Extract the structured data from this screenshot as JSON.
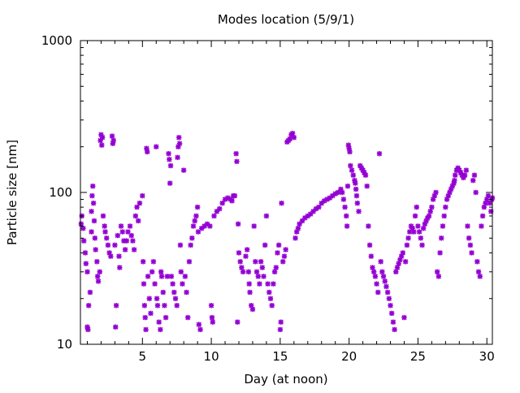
{
  "chart_data": {
    "type": "scatter",
    "title": "Modes location (5/9/1)",
    "xlabel": "Day (at noon)",
    "ylabel": "Particle size [nm]",
    "xlim": [
      0.5,
      30.4
    ],
    "ylim": [
      10,
      1000
    ],
    "y_scale": "log",
    "x_ticks": [
      5,
      10,
      15,
      20,
      25,
      30
    ],
    "x_tick_labels": [
      "5",
      "10",
      "15",
      "20",
      "25",
      "30"
    ],
    "y_ticks": [
      10,
      100,
      1000
    ],
    "y_tick_labels": [
      "10",
      "100",
      "1000"
    ],
    "grid": false,
    "legend": "none",
    "marker_color": "#9400D3",
    "marker": "asterisk",
    "series": [
      {
        "points": [
          [
            0.55,
            62
          ],
          [
            0.6,
            70
          ],
          [
            0.7,
            58
          ],
          [
            0.75,
            48
          ],
          [
            0.85,
            40
          ],
          [
            0.9,
            34
          ],
          [
            1.0,
            30
          ],
          [
            1.0,
            13
          ],
          [
            1.05,
            12.5
          ],
          [
            1.1,
            18
          ],
          [
            1.2,
            22
          ],
          [
            1.3,
            55
          ],
          [
            1.3,
            75
          ],
          [
            1.35,
            95
          ],
          [
            1.4,
            110
          ],
          [
            1.45,
            85
          ],
          [
            1.5,
            65
          ],
          [
            1.55,
            50
          ],
          [
            1.6,
            42
          ],
          [
            1.7,
            35
          ],
          [
            1.75,
            28
          ],
          [
            1.8,
            26
          ],
          [
            1.9,
            30
          ],
          [
            1.95,
            220
          ],
          [
            2.0,
            240
          ],
          [
            2.05,
            205
          ],
          [
            2.1,
            230
          ],
          [
            2.15,
            70
          ],
          [
            2.25,
            60
          ],
          [
            2.3,
            55
          ],
          [
            2.4,
            50
          ],
          [
            2.5,
            45
          ],
          [
            2.6,
            40
          ],
          [
            2.7,
            38
          ],
          [
            2.8,
            235
          ],
          [
            2.85,
            210
          ],
          [
            2.9,
            220
          ],
          [
            3.0,
            45
          ],
          [
            3.05,
            13
          ],
          [
            3.1,
            18
          ],
          [
            3.2,
            52
          ],
          [
            3.3,
            38
          ],
          [
            3.35,
            32
          ],
          [
            3.45,
            60
          ],
          [
            3.55,
            55
          ],
          [
            3.65,
            48
          ],
          [
            3.75,
            42
          ],
          [
            3.85,
            48
          ],
          [
            3.95,
            55
          ],
          [
            4.1,
            60
          ],
          [
            4.2,
            52
          ],
          [
            4.3,
            48
          ],
          [
            4.4,
            42
          ],
          [
            4.5,
            70
          ],
          [
            4.6,
            80
          ],
          [
            4.7,
            65
          ],
          [
            4.8,
            85
          ],
          [
            5.0,
            95
          ],
          [
            5.05,
            35
          ],
          [
            5.1,
            25
          ],
          [
            5.15,
            18
          ],
          [
            5.2,
            15
          ],
          [
            5.25,
            12.5
          ],
          [
            5.3,
            195
          ],
          [
            5.35,
            185
          ],
          [
            5.4,
            28
          ],
          [
            5.5,
            20
          ],
          [
            5.6,
            16
          ],
          [
            5.7,
            30
          ],
          [
            5.8,
            35
          ],
          [
            5.9,
            25
          ],
          [
            6.0,
            200
          ],
          [
            6.05,
            20
          ],
          [
            6.1,
            18
          ],
          [
            6.2,
            14
          ],
          [
            6.3,
            12.5
          ],
          [
            6.35,
            30
          ],
          [
            6.4,
            28
          ],
          [
            6.5,
            22
          ],
          [
            6.6,
            18
          ],
          [
            6.7,
            15
          ],
          [
            6.8,
            28
          ],
          [
            6.9,
            180
          ],
          [
            6.95,
            165
          ],
          [
            7.0,
            115
          ],
          [
            7.05,
            150
          ],
          [
            7.1,
            28
          ],
          [
            7.2,
            25
          ],
          [
            7.3,
            22
          ],
          [
            7.4,
            20
          ],
          [
            7.5,
            18
          ],
          [
            7.55,
            170
          ],
          [
            7.6,
            200
          ],
          [
            7.65,
            230
          ],
          [
            7.7,
            210
          ],
          [
            7.75,
            45
          ],
          [
            7.8,
            30
          ],
          [
            7.9,
            25
          ],
          [
            8.0,
            140
          ],
          [
            8.1,
            28
          ],
          [
            8.2,
            22
          ],
          [
            8.3,
            15
          ],
          [
            8.4,
            35
          ],
          [
            8.5,
            45
          ],
          [
            8.6,
            50
          ],
          [
            8.7,
            60
          ],
          [
            8.8,
            65
          ],
          [
            8.9,
            70
          ],
          [
            9.0,
            80
          ],
          [
            9.05,
            55
          ],
          [
            9.1,
            13.5
          ],
          [
            9.2,
            12.5
          ],
          [
            9.3,
            58
          ],
          [
            9.5,
            60
          ],
          [
            9.7,
            62
          ],
          [
            9.9,
            60
          ],
          [
            10.0,
            18
          ],
          [
            10.05,
            15
          ],
          [
            10.1,
            14
          ],
          [
            10.2,
            70
          ],
          [
            10.4,
            75
          ],
          [
            10.6,
            78
          ],
          [
            10.8,
            85
          ],
          [
            11.0,
            90
          ],
          [
            11.2,
            92
          ],
          [
            11.4,
            90
          ],
          [
            11.5,
            88
          ],
          [
            11.6,
            95
          ],
          [
            11.7,
            95
          ],
          [
            11.8,
            180
          ],
          [
            11.85,
            160
          ],
          [
            11.9,
            14
          ],
          [
            11.95,
            62
          ],
          [
            12.0,
            40
          ],
          [
            12.1,
            35
          ],
          [
            12.2,
            32
          ],
          [
            12.3,
            30
          ],
          [
            12.5,
            38
          ],
          [
            12.6,
            42
          ],
          [
            12.7,
            30
          ],
          [
            12.75,
            25
          ],
          [
            12.8,
            22
          ],
          [
            12.9,
            18
          ],
          [
            13.0,
            17
          ],
          [
            13.1,
            60
          ],
          [
            13.2,
            35
          ],
          [
            13.3,
            30
          ],
          [
            13.4,
            28
          ],
          [
            13.5,
            25
          ],
          [
            13.6,
            35
          ],
          [
            13.7,
            32
          ],
          [
            13.8,
            28
          ],
          [
            13.9,
            45
          ],
          [
            14.0,
            70
          ],
          [
            14.1,
            25
          ],
          [
            14.2,
            22
          ],
          [
            14.3,
            20
          ],
          [
            14.4,
            18
          ],
          [
            14.5,
            25
          ],
          [
            14.6,
            30
          ],
          [
            14.7,
            32
          ],
          [
            14.8,
            40
          ],
          [
            14.9,
            45
          ],
          [
            15.0,
            12.5
          ],
          [
            15.05,
            14
          ],
          [
            15.1,
            85
          ],
          [
            15.2,
            35
          ],
          [
            15.3,
            38
          ],
          [
            15.4,
            42
          ],
          [
            15.5,
            215
          ],
          [
            15.6,
            220
          ],
          [
            15.7,
            225
          ],
          [
            15.8,
            240
          ],
          [
            15.9,
            245
          ],
          [
            16.0,
            230
          ],
          [
            16.1,
            50
          ],
          [
            16.2,
            55
          ],
          [
            16.3,
            58
          ],
          [
            16.4,
            62
          ],
          [
            16.6,
            65
          ],
          [
            16.8,
            68
          ],
          [
            17.0,
            70
          ],
          [
            17.2,
            72
          ],
          [
            17.4,
            75
          ],
          [
            17.6,
            78
          ],
          [
            17.8,
            80
          ],
          [
            18.0,
            85
          ],
          [
            18.2,
            88
          ],
          [
            18.4,
            90
          ],
          [
            18.6,
            92
          ],
          [
            18.8,
            95
          ],
          [
            19.0,
            98
          ],
          [
            19.2,
            100
          ],
          [
            19.4,
            105
          ],
          [
            19.5,
            100
          ],
          [
            19.6,
            90
          ],
          [
            19.7,
            80
          ],
          [
            19.8,
            70
          ],
          [
            19.85,
            60
          ],
          [
            19.9,
            110
          ],
          [
            19.95,
            205
          ],
          [
            20.0,
            195
          ],
          [
            20.05,
            185
          ],
          [
            20.1,
            150
          ],
          [
            20.2,
            140
          ],
          [
            20.3,
            130
          ],
          [
            20.4,
            120
          ],
          [
            20.45,
            115
          ],
          [
            20.5,
            105
          ],
          [
            20.55,
            95
          ],
          [
            20.6,
            85
          ],
          [
            20.7,
            75
          ],
          [
            20.8,
            150
          ],
          [
            20.9,
            145
          ],
          [
            21.0,
            140
          ],
          [
            21.1,
            135
          ],
          [
            21.2,
            130
          ],
          [
            21.3,
            110
          ],
          [
            21.4,
            60
          ],
          [
            21.5,
            45
          ],
          [
            21.6,
            38
          ],
          [
            21.7,
            32
          ],
          [
            21.8,
            30
          ],
          [
            21.9,
            28
          ],
          [
            22.0,
            25
          ],
          [
            22.1,
            22
          ],
          [
            22.2,
            180
          ],
          [
            22.3,
            35
          ],
          [
            22.4,
            30
          ],
          [
            22.5,
            28
          ],
          [
            22.6,
            26
          ],
          [
            22.7,
            24
          ],
          [
            22.8,
            22
          ],
          [
            22.9,
            20
          ],
          [
            23.0,
            18
          ],
          [
            23.1,
            16
          ],
          [
            23.2,
            14
          ],
          [
            23.3,
            12.5
          ],
          [
            23.4,
            30
          ],
          [
            23.5,
            32
          ],
          [
            23.6,
            34
          ],
          [
            23.7,
            36
          ],
          [
            23.8,
            38
          ],
          [
            23.9,
            40
          ],
          [
            24.0,
            15
          ],
          [
            24.1,
            35
          ],
          [
            24.2,
            45
          ],
          [
            24.3,
            50
          ],
          [
            24.4,
            55
          ],
          [
            24.5,
            60
          ],
          [
            24.6,
            58
          ],
          [
            24.7,
            55
          ],
          [
            24.8,
            70
          ],
          [
            24.9,
            80
          ],
          [
            25.0,
            60
          ],
          [
            25.1,
            55
          ],
          [
            25.2,
            50
          ],
          [
            25.3,
            45
          ],
          [
            25.4,
            58
          ],
          [
            25.5,
            62
          ],
          [
            25.6,
            65
          ],
          [
            25.7,
            68
          ],
          [
            25.8,
            70
          ],
          [
            25.9,
            75
          ],
          [
            26.0,
            80
          ],
          [
            26.1,
            90
          ],
          [
            26.2,
            95
          ],
          [
            26.3,
            100
          ],
          [
            26.4,
            30
          ],
          [
            26.5,
            28
          ],
          [
            26.6,
            40
          ],
          [
            26.7,
            50
          ],
          [
            26.8,
            60
          ],
          [
            26.9,
            70
          ],
          [
            27.0,
            80
          ],
          [
            27.1,
            90
          ],
          [
            27.2,
            95
          ],
          [
            27.3,
            100
          ],
          [
            27.4,
            105
          ],
          [
            27.5,
            110
          ],
          [
            27.6,
            115
          ],
          [
            27.65,
            120
          ],
          [
            27.7,
            130
          ],
          [
            27.8,
            140
          ],
          [
            27.9,
            145
          ],
          [
            28.0,
            140
          ],
          [
            28.1,
            135
          ],
          [
            28.2,
            130
          ],
          [
            28.3,
            125
          ],
          [
            28.4,
            130
          ],
          [
            28.5,
            140
          ],
          [
            28.6,
            60
          ],
          [
            28.7,
            50
          ],
          [
            28.8,
            45
          ],
          [
            28.9,
            40
          ],
          [
            29.0,
            120
          ],
          [
            29.1,
            130
          ],
          [
            29.2,
            100
          ],
          [
            29.3,
            35
          ],
          [
            29.4,
            30
          ],
          [
            29.5,
            28
          ],
          [
            29.6,
            60
          ],
          [
            29.7,
            70
          ],
          [
            29.8,
            80
          ],
          [
            29.9,
            85
          ],
          [
            30.0,
            90
          ],
          [
            30.1,
            95
          ],
          [
            30.2,
            85
          ],
          [
            30.3,
            75
          ],
          [
            30.35,
            90
          ],
          [
            30.4,
            92
          ]
        ]
      }
    ]
  }
}
